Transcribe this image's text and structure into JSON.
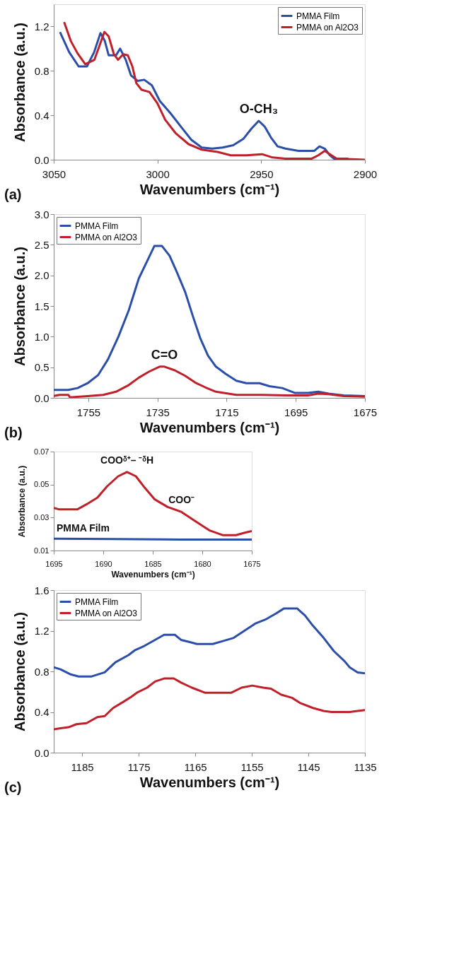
{
  "chart_data": [
    {
      "type": "line",
      "xlabel": "Wavenumbers (cm⁻¹)",
      "ylabel": "Absorbance (a.u.)",
      "xlim": [
        3050,
        2900
      ],
      "ylim": [
        0,
        1.4
      ],
      "xticks": [
        3050,
        3000,
        2950,
        2900
      ],
      "yticks": [
        {
          "value": 0,
          "label": "0.0"
        },
        0.4,
        0.8,
        1.2
      ],
      "legend": "top right",
      "grid": false,
      "annotations": [
        "(a)",
        {
          "text": "O-CH₃",
          "x": 2951.2,
          "y": 0.35
        }
      ],
      "series": [
        {
          "name": "PMMA Film",
          "color": "#2b4fa8",
          "x": [
            3047,
            3042.6,
            3038,
            3034,
            3030.5,
            3027.5,
            3025.4,
            3023.5,
            3020,
            3018,
            3015.3,
            3012.8,
            3009.6,
            3006.4,
            3002.7,
            2998.9,
            2993.8,
            2988.8,
            2983.7,
            2978.7,
            2973.6,
            2968.6,
            2963.5,
            2958.5,
            2954.7,
            2951.2,
            2948.4,
            2945.3,
            2942.1,
            2938.3,
            2932,
            2924.4,
            2921.9,
            2919.4,
            2916.9,
            2915,
            2908
          ],
          "values": [
            1.15,
            0.97,
            0.84,
            0.84,
            0.97,
            1.14,
            1.07,
            0.94,
            0.94,
            1.0,
            0.9,
            0.76,
            0.71,
            0.72,
            0.67,
            0.53,
            0.42,
            0.3,
            0.18,
            0.11,
            0.1,
            0.11,
            0.13,
            0.19,
            0.28,
            0.35,
            0.3,
            0.2,
            0.12,
            0.1,
            0.08,
            0.08,
            0.12,
            0.1,
            0.04,
            0.01,
            0.01
          ]
        },
        {
          "name": "PMMA on Al2O3",
          "color": "#c0202a",
          "x": [
            3045,
            3041.8,
            3038.6,
            3034.8,
            3030.4,
            3027.9,
            3025.6,
            3023.5,
            3021,
            3019,
            3016.5,
            3014.3,
            3012.1,
            3010.2,
            3007.7,
            3003.9,
            3000.1,
            2996.3,
            2991.3,
            2985,
            2978.7,
            2971,
            2964.7,
            2957.1,
            2949.6,
            2944.5,
            2938.3,
            2925.6,
            2922.5,
            2919.4,
            2916.9,
            2913.6,
            2900
          ],
          "values": [
            1.24,
            1.07,
            0.96,
            0.86,
            0.9,
            1.03,
            1.15,
            1.11,
            0.95,
            0.9,
            0.95,
            0.94,
            0.84,
            0.69,
            0.63,
            0.61,
            0.51,
            0.36,
            0.24,
            0.14,
            0.09,
            0.07,
            0.04,
            0.04,
            0.05,
            0.02,
            0.01,
            0.01,
            0.04,
            0.08,
            0.05,
            0.01,
            0.0
          ]
        }
      ]
    },
    {
      "type": "line",
      "xlabel": "Wavenumbers (cm⁻¹)",
      "ylabel": "Absorbance (a.u.)",
      "xlim": [
        1765,
        1675
      ],
      "ylim": [
        0,
        3.0
      ],
      "xticks": [
        1755,
        1735,
        1715,
        1695,
        1675
      ],
      "yticks": [
        {
          "value": 0,
          "label": "0.0"
        },
        0.5,
        {
          "value": 1,
          "label": "1.0"
        },
        1.5,
        {
          "value": 2,
          "label": "2.0"
        },
        2.5,
        {
          "value": 3,
          "label": "3.0"
        }
      ],
      "legend": "top left",
      "grid": false,
      "annotations": [
        "(b)",
        {
          "text": "C=O",
          "x": 1733,
          "y": 0.51
        }
      ],
      "series": [
        {
          "name": "PMMA Film",
          "color": "#2b4fa8",
          "x": [
            1765,
            1760.8,
            1758.1,
            1755.2,
            1752.2,
            1749.3,
            1746.3,
            1743.3,
            1740.4,
            1738.1,
            1735.9,
            1733.7,
            1731.5,
            1729.3,
            1727,
            1724.8,
            1722.6,
            1720.4,
            1718.1,
            1715.2,
            1712.2,
            1709.3,
            1705.5,
            1702.6,
            1698.9,
            1695.2,
            1691.5,
            1688.5,
            1685.5,
            1681.1,
            1675
          ],
          "values": [
            0.13,
            0.13,
            0.16,
            0.24,
            0.37,
            0.63,
            1.0,
            1.43,
            1.95,
            2.22,
            2.48,
            2.48,
            2.32,
            2.04,
            1.73,
            1.34,
            0.97,
            0.69,
            0.51,
            0.39,
            0.28,
            0.24,
            0.24,
            0.19,
            0.16,
            0.08,
            0.08,
            0.1,
            0.07,
            0.04,
            0.03
          ]
        },
        {
          "name": "PMMA on Al2O3",
          "color": "#c0202a",
          "x": [
            1765,
            1763.3,
            1760.8,
            1760.3,
            1755.2,
            1750.7,
            1747,
            1743.3,
            1740.4,
            1737.4,
            1734.4,
            1733,
            1730,
            1727,
            1724.1,
            1721.1,
            1718.1,
            1712.2,
            1704.8,
            1697.4,
            1691.5,
            1688.5,
            1685.5,
            1681.1,
            1675
          ],
          "values": [
            0.03,
            0.05,
            0.05,
            0.01,
            0.03,
            0.05,
            0.1,
            0.21,
            0.33,
            0.43,
            0.51,
            0.51,
            0.45,
            0.36,
            0.25,
            0.17,
            0.1,
            0.05,
            0.05,
            0.04,
            0.04,
            0.07,
            0.06,
            0.03,
            0.02
          ]
        }
      ]
    },
    {
      "type": "line",
      "xlabel": "Wavenumbers (cm⁻¹)",
      "ylabel": "Absorbance (a.u.)",
      "xlim": [
        1695,
        1675
      ],
      "ylim": [
        0.01,
        0.07
      ],
      "xticks": [
        1695,
        1690,
        1685,
        1680,
        1675
      ],
      "yticks": [
        0.01,
        0.03,
        0.05,
        0.07
      ],
      "grid": false,
      "annotations": [
        {
          "text": "COOᵟ⁺– ⁻ᵟH",
          "x": 1687.6,
          "y": 0.0576
        },
        {
          "text": "COO⁻",
          "x": 1682.1,
          "y": 0.0334
        }
      ],
      "series": [
        {
          "name": "PMMA Film",
          "color": "#2b4fa8",
          "x": [
            1695,
            1689,
            1684,
            1675
          ],
          "values": [
            0.0172,
            0.017,
            0.0167,
            0.0166
          ]
        },
        {
          "color": "#c0202a",
          "x": [
            1695,
            1694.5,
            1692.6,
            1691.7,
            1690.6,
            1689.6,
            1688.5,
            1687.6,
            1686.7,
            1685.8,
            1684.8,
            1683.5,
            1682.1,
            1680.7,
            1679.3,
            1677.9,
            1676.6,
            1675.7,
            1675
          ],
          "values": [
            0.0359,
            0.035,
            0.035,
            0.038,
            0.042,
            0.049,
            0.055,
            0.0576,
            0.055,
            0.048,
            0.041,
            0.0364,
            0.0334,
            0.0278,
            0.0223,
            0.0193,
            0.0193,
            0.0208,
            0.0218
          ]
        }
      ]
    },
    {
      "type": "line",
      "xlabel": "Wavenumbers (cm⁻¹)",
      "ylabel": "Absorbance (a.u.)",
      "xlim": [
        1190,
        1135
      ],
      "ylim": [
        0,
        1.6
      ],
      "xticks": [
        1185,
        1175,
        1165,
        1155,
        1145,
        1135
      ],
      "yticks": [
        {
          "value": 0,
          "label": "0.0"
        },
        0.4,
        0.8,
        1.2,
        1.6
      ],
      "legend": "top left",
      "grid": false,
      "annotations": [
        "(c)"
      ],
      "series": [
        {
          "name": "PMMA Film",
          "color": "#2b4fa8",
          "x": [
            1190,
            1188.8,
            1187,
            1185.6,
            1183.3,
            1181,
            1179.1,
            1176.8,
            1175.6,
            1174,
            1172.1,
            1170.5,
            1168.6,
            1167.5,
            1166.1,
            1164.7,
            1161.9,
            1160,
            1158.2,
            1156.3,
            1154.4,
            1152.6,
            1150.7,
            1149.3,
            1147,
            1145.6,
            1144.2,
            1142.3,
            1140.5,
            1138.6,
            1137.7,
            1136.3,
            1135
          ],
          "values": [
            0.84,
            0.82,
            0.77,
            0.75,
            0.75,
            0.79,
            0.89,
            0.96,
            1.01,
            1.05,
            1.11,
            1.16,
            1.16,
            1.11,
            1.09,
            1.07,
            1.07,
            1.1,
            1.13,
            1.2,
            1.27,
            1.31,
            1.37,
            1.42,
            1.42,
            1.35,
            1.25,
            1.13,
            1.0,
            0.9,
            0.84,
            0.79,
            0.78
          ]
        },
        {
          "name": "PMMA on Al2O3",
          "color": "#c0202a",
          "x": [
            1190,
            1188.8,
            1187.4,
            1186,
            1184.2,
            1182.3,
            1181,
            1179.5,
            1177.7,
            1176.3,
            1175.3,
            1173.5,
            1172.1,
            1170.5,
            1168.8,
            1167.5,
            1165.6,
            1163.3,
            1158.6,
            1156.8,
            1154.9,
            1153,
            1151.6,
            1149.8,
            1147.9,
            1146.5,
            1144.2,
            1142.3,
            1140.9,
            1137.7,
            1136.3,
            1135
          ],
          "values": [
            0.23,
            0.24,
            0.25,
            0.28,
            0.29,
            0.35,
            0.36,
            0.44,
            0.5,
            0.55,
            0.59,
            0.64,
            0.7,
            0.73,
            0.73,
            0.69,
            0.64,
            0.59,
            0.59,
            0.64,
            0.66,
            0.64,
            0.63,
            0.57,
            0.54,
            0.49,
            0.44,
            0.41,
            0.4,
            0.4,
            0.41,
            0.42
          ]
        }
      ]
    }
  ]
}
